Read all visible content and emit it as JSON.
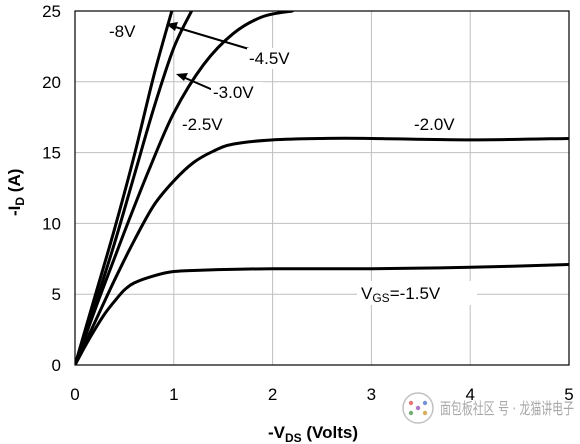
{
  "chart_data": {
    "type": "line",
    "title": "",
    "xlabel": {
      "main": "-V",
      "sub": "DS",
      "rest": " (Volts)"
    },
    "ylabel": {
      "main": "-I",
      "sub": "D",
      "rest": " (A)"
    },
    "xlim": [
      0,
      5
    ],
    "ylim": [
      0,
      25
    ],
    "x_ticks": [
      "0",
      "1",
      "2",
      "3",
      "4",
      "5"
    ],
    "y_ticks": [
      "0",
      "5",
      "10",
      "15",
      "20",
      "25"
    ],
    "grid": true,
    "series": [
      {
        "name": "-8V",
        "points": [
          [
            0,
            0
          ],
          [
            0.2,
            4.8
          ],
          [
            0.4,
            9.6
          ],
          [
            0.6,
            14.8
          ],
          [
            0.8,
            20.5
          ],
          [
            0.98,
            25
          ]
        ]
      },
      {
        "name": "-4.5V",
        "points": [
          [
            0,
            0
          ],
          [
            0.2,
            4.2
          ],
          [
            0.4,
            8.6
          ],
          [
            0.6,
            13.4
          ],
          [
            0.8,
            18.2
          ],
          [
            1.0,
            22.4
          ],
          [
            1.18,
            25
          ]
        ]
      },
      {
        "name": "-3.0V",
        "points": [
          [
            0,
            0
          ],
          [
            0.25,
            4.8
          ],
          [
            0.5,
            9.4
          ],
          [
            0.75,
            13.8
          ],
          [
            1.0,
            17.8
          ],
          [
            1.3,
            21.2
          ],
          [
            1.6,
            23.4
          ],
          [
            1.9,
            24.6
          ],
          [
            2.2,
            25
          ]
        ]
      },
      {
        "name": "-2.5V",
        "points": [
          [
            0,
            0
          ],
          [
            0.2,
            3.0
          ],
          [
            0.4,
            6.0
          ],
          [
            0.6,
            8.8
          ],
          [
            0.8,
            11.3
          ],
          [
            1.0,
            13.0
          ],
          [
            1.2,
            14.3
          ],
          [
            1.4,
            15.1
          ],
          [
            1.6,
            15.6
          ],
          [
            2.0,
            15.9
          ],
          [
            2.5,
            16.0
          ],
          [
            3.0,
            16.0
          ],
          [
            4.0,
            15.9
          ],
          [
            5.0,
            16.0
          ]
        ]
      },
      {
        "name": "-1.5V",
        "points": [
          [
            0,
            0
          ],
          [
            0.1,
            1.3
          ],
          [
            0.2,
            2.5
          ],
          [
            0.3,
            3.6
          ],
          [
            0.4,
            4.5
          ],
          [
            0.5,
            5.3
          ],
          [
            0.6,
            5.8
          ],
          [
            0.8,
            6.3
          ],
          [
            1.0,
            6.6
          ],
          [
            1.3,
            6.7
          ],
          [
            2.0,
            6.8
          ],
          [
            3.0,
            6.8
          ],
          [
            4.0,
            6.9
          ],
          [
            5.0,
            7.1
          ]
        ]
      }
    ],
    "annotations": [
      {
        "text": "-8V"
      },
      {
        "text": "-4.5V"
      },
      {
        "text": "-3.0V"
      },
      {
        "text": "-2.5V"
      },
      {
        "text": "-2.0V"
      },
      {
        "main": "V",
        "sub": "GS",
        "rest": "=-1.5V"
      }
    ]
  },
  "watermark": {
    "text": "面包板社区 号 · 龙猫讲电子"
  }
}
